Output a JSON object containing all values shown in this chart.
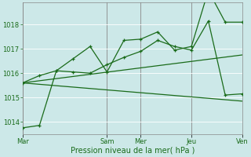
{
  "background_color": "#cce8e8",
  "grid_color": "#ffffff",
  "line_color": "#1a6b1a",
  "xlabel": "Pression niveau de la mer( hPa )",
  "xlabel_color": "#1a6b1a",
  "ylim": [
    1013.5,
    1018.9
  ],
  "yticks": [
    1014,
    1015,
    1016,
    1017,
    1018
  ],
  "xtick_labels": [
    "Mar",
    "Sam",
    "Mer",
    "Jeu",
    "Ven"
  ],
  "xtick_positions": [
    0,
    5,
    7,
    10,
    13
  ],
  "vline_positions": [
    0,
    5,
    7,
    10,
    13
  ],
  "series1_x": [
    0,
    1,
    2,
    3,
    4,
    5,
    6,
    7,
    8,
    9,
    10,
    11,
    12,
    13
  ],
  "series1_y": [
    1013.75,
    1013.85,
    1016.1,
    1016.6,
    1017.1,
    1016.05,
    1017.35,
    1017.4,
    1017.7,
    1016.95,
    1017.1,
    1019.4,
    1018.1,
    1018.1
  ],
  "series2_x": [
    0,
    1,
    2,
    3,
    4,
    5,
    6,
    7,
    8,
    9,
    10,
    11,
    12,
    13
  ],
  "series2_y": [
    1015.6,
    1015.9,
    1016.1,
    1016.05,
    1016.0,
    1016.35,
    1016.65,
    1016.9,
    1017.35,
    1017.1,
    1016.95,
    1018.15,
    1015.1,
    1015.15
  ],
  "series3_x": [
    0,
    13
  ],
  "series3_y": [
    1015.6,
    1016.75
  ],
  "series4_x": [
    0,
    13
  ],
  "series4_y": [
    1015.6,
    1014.85
  ],
  "total_x_range": 13,
  "marker_size": 3.5,
  "line_width": 0.9,
  "ytick_fontsize": 6,
  "xtick_fontsize": 6,
  "xlabel_fontsize": 7,
  "grid_lw": 0.6,
  "vline_color": "#888888",
  "vline_lw": 0.6,
  "spine_color": "#888888"
}
